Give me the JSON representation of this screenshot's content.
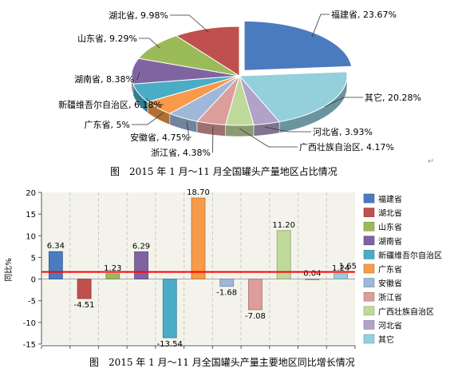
{
  "chart_data": [
    {
      "type": "pie",
      "caption": "图　2015 年 1 月～11 月全国罐头产量地区占比情况",
      "slices": [
        {
          "label": "福建省",
          "value": 23.67,
          "display": "23.67%",
          "color": "#4a7bbf"
        },
        {
          "label": "其它",
          "value": 20.28,
          "display": "20.28%",
          "color": "#94cfdc"
        },
        {
          "label": "河北省",
          "value": 3.93,
          "display": "3.93%",
          "color": "#b1a3c8"
        },
        {
          "label": "广西壮族自治区",
          "value": 4.17,
          "display": "4.17%",
          "color": "#bfd99a"
        },
        {
          "label": "浙江省",
          "value": 4.38,
          "display": "4.38%",
          "color": "#dc9d9b"
        },
        {
          "label": "安徽省",
          "value": 4.75,
          "display": "4.75%",
          "color": "#9fb7d8"
        },
        {
          "label": "广东省",
          "value": 5,
          "display": "5%",
          "color": "#f79a4a"
        },
        {
          "label": "新疆维吾尔自治区",
          "value": 6.18,
          "display": "6.18%",
          "color": "#4bacc6"
        },
        {
          "label": "湖南省",
          "value": 8.38,
          "display": "8.38%",
          "color": "#8064a2"
        },
        {
          "label": "山东省",
          "value": 9.29,
          "display": "9.29%",
          "color": "#9bbb59"
        },
        {
          "label": "湖北省",
          "value": 9.98,
          "display": "9.98%",
          "color": "#c0504d"
        }
      ]
    },
    {
      "type": "bar",
      "caption": "图　2015 年 1 月～11 月全国罐头产量主要地区同比增长情况",
      "ylabel": "同比%",
      "ylim": [
        -15,
        20
      ],
      "yticks": [
        20,
        15,
        10,
        5,
        0,
        -5,
        -10,
        -15
      ],
      "reference_line": 1.65,
      "reference_color": "#ff0000",
      "categories": [
        "福建省",
        "湖北省",
        "山东省",
        "湖南省",
        "新疆维吾尔自治区",
        "广东省",
        "安徽省",
        "浙江省",
        "广西壮族自治区",
        "河北省",
        "其它"
      ],
      "values": [
        6.34,
        -4.51,
        1.23,
        6.29,
        -13.54,
        18.7,
        -1.68,
        -7.08,
        11.2,
        0.04,
        1.24
      ],
      "value_labels": [
        "6.34",
        "-4.51",
        "1.23",
        "6.29",
        "-13.54",
        "18.70",
        "-1.68",
        "-7.08",
        "11.20",
        "0.04",
        "1.24"
      ],
      "reference_label": "1.65",
      "colors": [
        "#4a7bbf",
        "#c0504d",
        "#9bbb59",
        "#8064a2",
        "#4bacc6",
        "#f79a4a",
        "#9fb7d8",
        "#dc9d9b",
        "#bfd99a",
        "#b1a3c8",
        "#94cfdc"
      ],
      "legend_position": "right"
    }
  ]
}
